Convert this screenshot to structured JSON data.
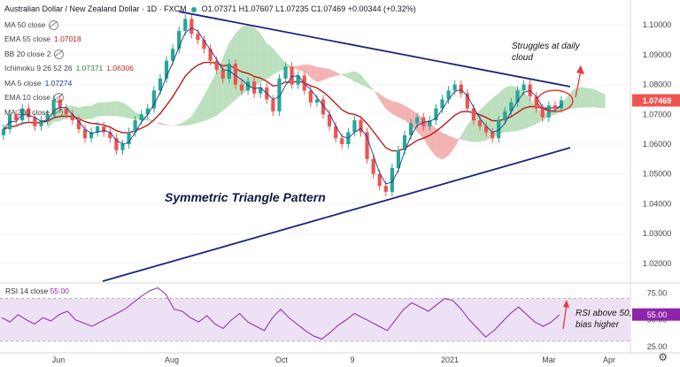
{
  "header": {
    "instrument": "Australian Dollar / New Zealand Dollar · 1D · FXCM",
    "ohlc": "O1.07371 H1.07607 L1.07235 C1.07469 +0.00344 (+0.32%)"
  },
  "legend": [
    {
      "name": "MA 50 close",
      "value": "",
      "color": "#2962ff"
    },
    {
      "name": "EMA 55 close",
      "value": "1.07018",
      "color": "#b71c1c"
    },
    {
      "name": "BB 20 close 2",
      "value": "",
      "color": "#2962ff"
    },
    {
      "name": "Ichimoku 9 26 52 26",
      "value": "1.07371",
      "value2": "1.06306",
      "color": "#2e7d32",
      "color2": "#c62828"
    },
    {
      "name": "MA 5 close",
      "value": "1.07274",
      "color": "#1e3a8a"
    },
    {
      "name": "EMA 10 close",
      "value": "",
      "color": "#777"
    },
    {
      "name": "MA 200 close",
      "value": "",
      "color": "#777"
    }
  ],
  "annotations": {
    "triangle_label": "Symmetric Triangle Pattern",
    "daily_cloud_note": "Struggles at daily cloud",
    "rsi_note": "RSI above 50, bias higher"
  },
  "rsi_label": "RSI 14 close",
  "rsi_value": "55.00",
  "last_price": "1.07469",
  "colors": {
    "bull": "#26a69a",
    "bear": "#ef5350",
    "cloud_green": "#a5d6a7",
    "cloud_red": "#ef9a9a",
    "trend": "#1a237e",
    "ema": "#b71c1c",
    "ma5": "#1e3a8a",
    "rsi": "#8e24aa",
    "annotation": "#e53935",
    "price_tag": "#ef5350"
  },
  "chart_data": [
    {
      "type": "candlestick",
      "x_labels": [
        "Jun",
        "Aug",
        "Oct",
        "9",
        "2021",
        "Mar",
        "Apr"
      ],
      "y_ticks": [
        "1.10000",
        "1.09000",
        "1.08000",
        "1.07000",
        "1.06000",
        "1.05000",
        "1.04000",
        "1.03000",
        "1.02000"
      ],
      "ylim": [
        1.014,
        1.106
      ],
      "series": [
        {
          "name": "Close",
          "values": [
            1.065,
            1.07,
            1.068,
            1.072,
            1.069,
            1.066,
            1.068,
            1.07,
            1.075,
            1.072,
            1.07,
            1.068,
            1.065,
            1.062,
            1.064,
            1.066,
            1.064,
            1.062,
            1.058,
            1.06,
            1.064,
            1.068,
            1.07,
            1.072,
            1.078,
            1.082,
            1.088,
            1.092,
            1.098,
            1.102,
            1.097,
            1.095,
            1.092,
            1.088,
            1.085,
            1.082,
            1.087,
            1.08,
            1.078,
            1.081,
            1.077,
            1.079,
            1.075,
            1.071,
            1.082,
            1.086,
            1.08,
            1.083,
            1.078,
            1.074,
            1.075,
            1.07,
            1.066,
            1.062,
            1.06,
            1.064,
            1.068,
            1.064,
            1.055,
            1.05,
            1.046,
            1.044,
            1.052,
            1.058,
            1.063,
            1.067,
            1.069,
            1.066,
            1.068,
            1.072,
            1.075,
            1.078,
            1.08,
            1.077,
            1.072,
            1.068,
            1.066,
            1.064,
            1.062,
            1.068,
            1.071,
            1.074,
            1.078,
            1.08,
            1.076,
            1.072,
            1.069,
            1.073,
            1.072,
            1.0747
          ]
        }
      ]
    },
    {
      "type": "line",
      "title": "RSI 14 close",
      "y_ticks": [
        "75.00",
        "50.00",
        "25.00"
      ],
      "ylim": [
        20,
        82
      ],
      "series": [
        {
          "name": "RSI 14 close",
          "values": [
            52,
            48,
            55,
            50,
            46,
            52,
            49,
            55,
            58,
            50,
            47,
            44,
            48,
            52,
            56,
            60,
            66,
            72,
            77,
            80,
            74,
            60,
            58,
            52,
            48,
            54,
            46,
            42,
            50,
            56,
            48,
            44,
            40,
            52,
            60,
            52,
            46,
            40,
            35,
            32,
            38,
            45,
            50,
            56,
            52,
            48,
            44,
            40,
            50,
            60,
            66,
            62,
            58,
            64,
            70,
            68,
            60,
            50,
            42,
            34,
            40,
            48,
            56,
            62,
            55,
            48,
            44,
            48,
            55
          ]
        }
      ]
    }
  ]
}
